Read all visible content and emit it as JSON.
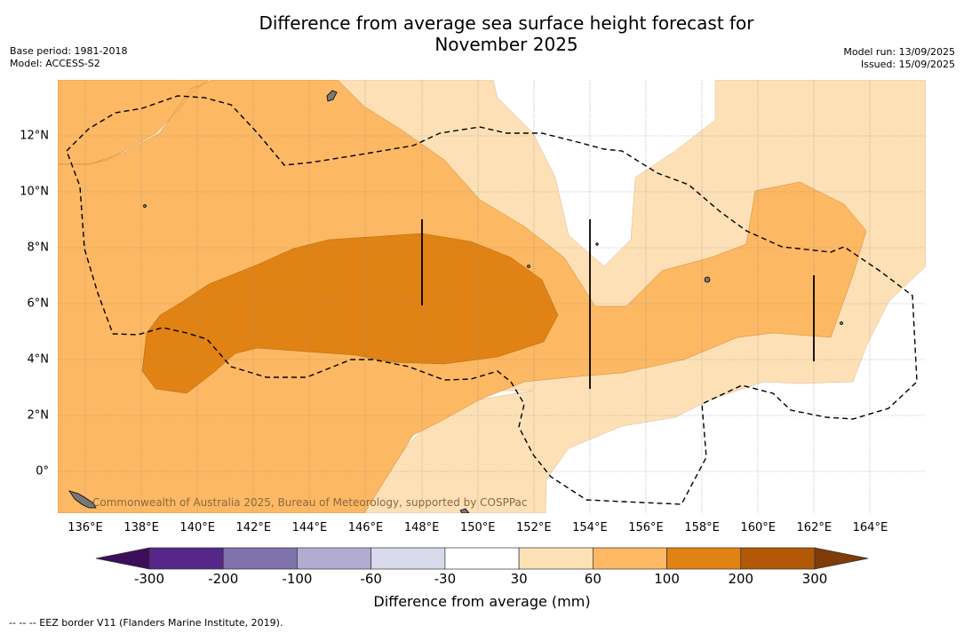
{
  "title_line1": "Difference from average sea surface height forecast for",
  "title_line2": "November 2025",
  "base_period": "Base period: 1981-2018",
  "model": "Model: ACCESS-S2",
  "model_run": "Model run: 13/09/2025",
  "issued": "Issued: 15/09/2025",
  "watermark": "Commonwealth of Australia 2025, Bureau of Meteorology, supported by COSPPac",
  "x_ticks": [
    "136°E",
    "138°E",
    "140°E",
    "142°E",
    "144°E",
    "146°E",
    "148°E",
    "150°E",
    "152°E",
    "154°E",
    "156°E",
    "158°E",
    "160°E",
    "162°E",
    "164°E"
  ],
  "y_ticks": [
    "12°N",
    "10°N",
    "8°N",
    "6°N",
    "4°N",
    "2°N",
    "0°"
  ],
  "colorbar": {
    "labels": [
      "-300",
      "-200",
      "-100",
      "-60",
      "-30",
      "30",
      "60",
      "100",
      "200",
      "300"
    ],
    "colors": [
      "#3b0f5a",
      "#542788",
      "#8073ac",
      "#b2abd2",
      "#d8daeb",
      "#ffffff",
      "#fee0b6",
      "#fdb863",
      "#e08214",
      "#b35806",
      "#7f3b08"
    ],
    "title": "Difference from average (mm)"
  },
  "footnote": "--  --  -- EEZ border V11 (Flanders Marine Institute, 2019)."
}
